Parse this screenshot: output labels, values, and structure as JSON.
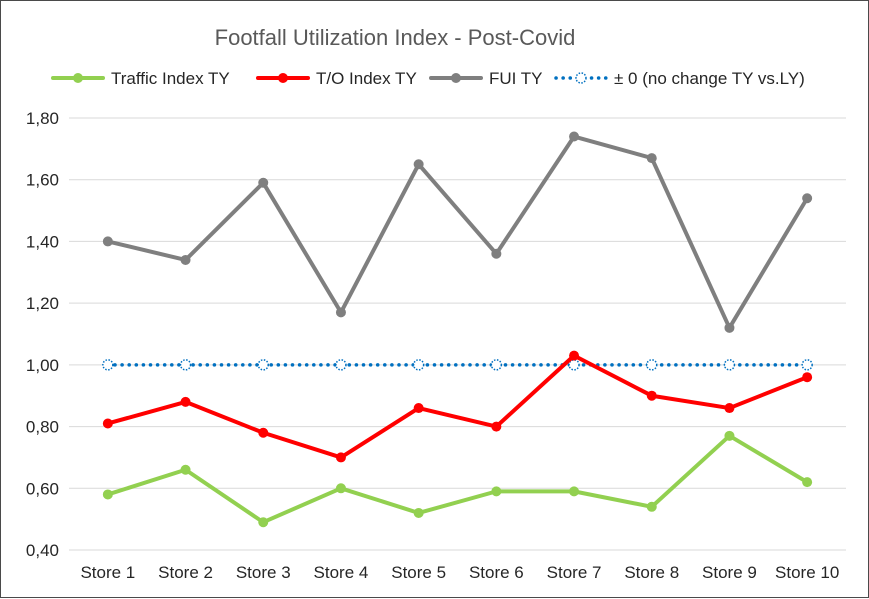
{
  "chart_data": {
    "type": "line",
    "title": "Footfall Utilization Index  - Post-Covid",
    "xlabel": "",
    "ylabel": "",
    "categories": [
      "Store 1",
      "Store 2",
      "Store 3",
      "Store 4",
      "Store 5",
      "Store 6",
      "Store 7",
      "Store 8",
      "Store 9",
      "Store 10"
    ],
    "y_ticks": [
      "0,40",
      "0,60",
      "0,80",
      "1,00",
      "1,20",
      "1,40",
      "1,60",
      "1,80"
    ],
    "ylim": [
      0.4,
      1.8
    ],
    "grid": true,
    "legend_position": "top",
    "series": [
      {
        "name": "Traffic Index TY",
        "color": "#92d050",
        "style": "solid",
        "values": [
          0.58,
          0.66,
          0.49,
          0.6,
          0.52,
          0.59,
          0.59,
          0.54,
          0.77,
          0.62
        ]
      },
      {
        "name": "T/O Index TY",
        "color": "#ff0000",
        "style": "solid",
        "values": [
          0.81,
          0.88,
          0.78,
          0.7,
          0.86,
          0.8,
          1.03,
          0.9,
          0.86,
          0.96
        ]
      },
      {
        "name": "FUI TY",
        "color": "#7f7f7f",
        "style": "solid",
        "values": [
          1.4,
          1.34,
          1.59,
          1.17,
          1.65,
          1.36,
          1.74,
          1.67,
          1.12,
          1.54
        ]
      },
      {
        "name": "± 0 (no change TY vs.LY)",
        "color": "#0070c0",
        "style": "dotted",
        "values": [
          1.0,
          1.0,
          1.0,
          1.0,
          1.0,
          1.0,
          1.0,
          1.0,
          1.0,
          1.0
        ]
      }
    ]
  }
}
